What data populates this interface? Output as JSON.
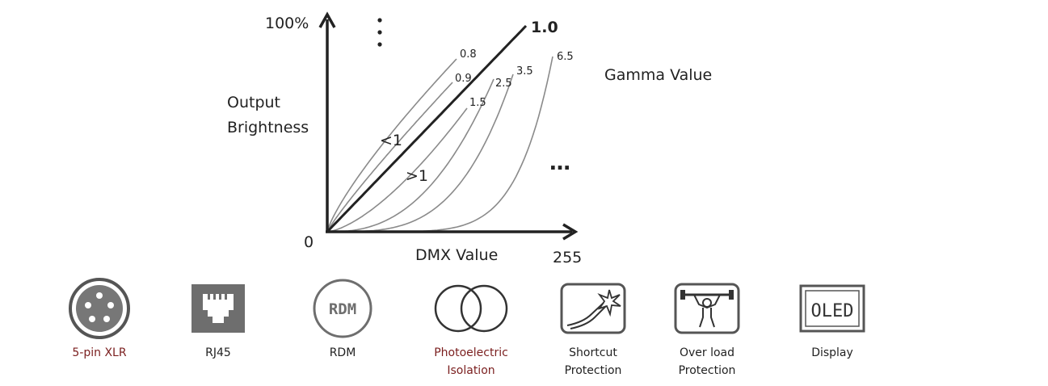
{
  "chart": {
    "y_top_label": "100%",
    "origin_label": "0",
    "x_end_label": "255",
    "x_axis_label": "DMX Value",
    "y_axis_label_line1": "Output",
    "y_axis_label_line2": "Brightness",
    "legend_title": "Gamma Value",
    "below_one_label": "<1",
    "above_one_label": ">1",
    "more_dots": "…"
  },
  "chart_data": {
    "type": "line",
    "x_range": [
      0,
      255
    ],
    "y_range": [
      0,
      100
    ],
    "series": [
      {
        "name": "0.8",
        "gamma": 0.8
      },
      {
        "name": "0.9",
        "gamma": 0.9
      },
      {
        "name": "1.0",
        "gamma": 1.0
      },
      {
        "name": "1.5",
        "gamma": 1.5
      },
      {
        "name": "2.5",
        "gamma": 2.5
      },
      {
        "name": "3.5",
        "gamma": 3.5
      },
      {
        "name": "6.5",
        "gamma": 6.5
      }
    ]
  },
  "features": [
    {
      "id": "xlr",
      "icon": "xlr-connector-icon",
      "label": "5-pin XLR",
      "color": "#7a1e1e"
    },
    {
      "id": "rj45",
      "icon": "rj45-port-icon",
      "label": "RJ45",
      "color": "#222222"
    },
    {
      "id": "rdm",
      "icon": "rdm-badge-icon",
      "label": "RDM",
      "icon_text": "RDM",
      "color": "#222222"
    },
    {
      "id": "photo",
      "icon": "photoelectric-isolation-icon",
      "label": "Photoelectric\nIsolation",
      "color": "#7a1e1e"
    },
    {
      "id": "short",
      "icon": "shortcut-protection-icon",
      "label": "Shortcut\nProtection",
      "color": "#222222"
    },
    {
      "id": "overload",
      "icon": "overload-protection-icon",
      "label": "Over load\nProtection",
      "color": "#222222"
    },
    {
      "id": "display",
      "icon": "oled-display-icon",
      "label": "Display",
      "icon_text": "OLED",
      "color": "#222222"
    }
  ]
}
